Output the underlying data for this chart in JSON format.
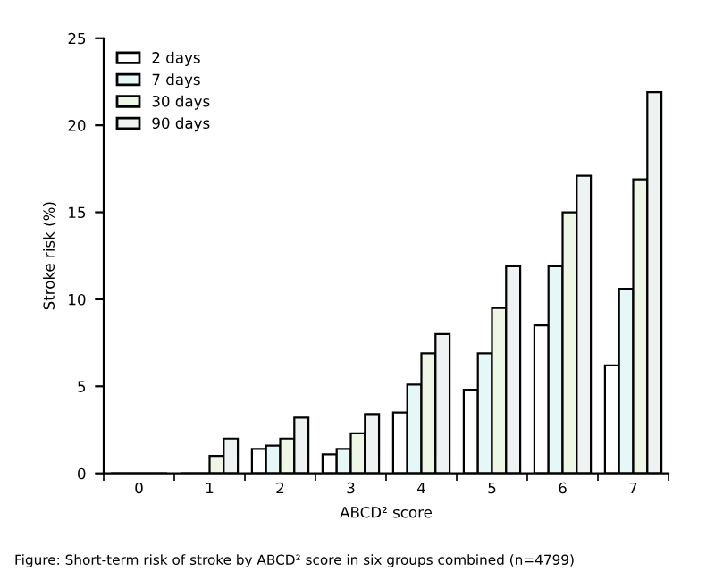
{
  "chart_data": {
    "type": "bar",
    "xlabel": "ABCD² score",
    "ylabel": "Stroke risk (%)",
    "categories": [
      "0",
      "1",
      "2",
      "3",
      "4",
      "5",
      "6",
      "7"
    ],
    "series": [
      {
        "name": "2 days",
        "color": "#ffffff",
        "values": [
          0,
          0,
          1.4,
          1.1,
          3.5,
          4.8,
          8.5,
          6.2
        ]
      },
      {
        "name": "7 days",
        "color": "#e6f7f7",
        "values": [
          0,
          0,
          1.6,
          1.4,
          5.1,
          6.9,
          11.9,
          10.6
        ]
      },
      {
        "name": "30 days",
        "color": "#eef7e6",
        "values": [
          0,
          1.0,
          2.0,
          2.3,
          6.9,
          9.5,
          15.0,
          16.9
        ]
      },
      {
        "name": "90 days",
        "color": "#eef2f2",
        "values": [
          0,
          2.0,
          3.2,
          3.4,
          8.0,
          11.9,
          17.1,
          21.9
        ]
      }
    ],
    "ylim": [
      0,
      25
    ],
    "yticks": [
      0,
      5,
      10,
      15,
      20,
      25
    ],
    "grid": false,
    "legend": "top left",
    "annotations": [
      "Figure: Short-term risk of stroke by ABCD² score in six groups combined (n=4799)"
    ]
  }
}
